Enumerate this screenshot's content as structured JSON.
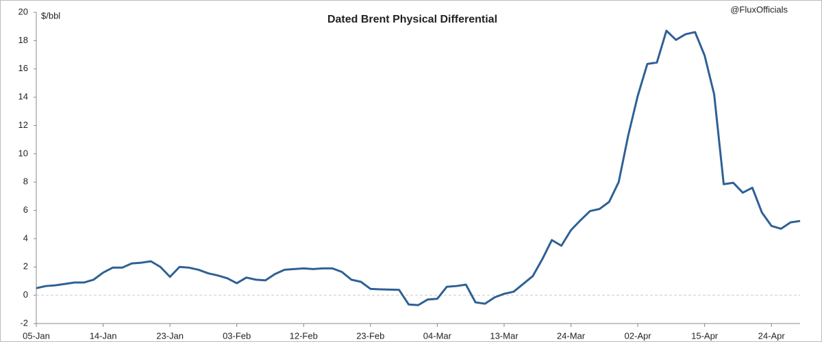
{
  "chart_data": {
    "type": "line",
    "title": "Dated Brent Physical Differential",
    "y_label": "$/bbl",
    "annotation": "@FluxOfficials",
    "categories": [
      "05-Jan",
      null,
      null,
      null,
      null,
      null,
      null,
      "14-Jan",
      null,
      null,
      null,
      null,
      null,
      null,
      "23-Jan",
      null,
      null,
      null,
      null,
      null,
      null,
      "03-Feb",
      null,
      null,
      null,
      null,
      null,
      null,
      "12-Feb",
      null,
      null,
      null,
      null,
      null,
      null,
      "23-Feb",
      null,
      null,
      null,
      null,
      null,
      null,
      "04-Mar",
      null,
      null,
      null,
      null,
      null,
      null,
      "13-Mar",
      null,
      null,
      null,
      null,
      null,
      null,
      "24-Mar",
      null,
      null,
      null,
      null,
      null,
      null,
      "02-Apr",
      null,
      null,
      null,
      null,
      null,
      null,
      "15-Apr",
      null,
      null,
      null,
      null,
      null,
      null,
      "24-Apr",
      null,
      null,
      null
    ],
    "values": [
      0.5,
      0.65,
      0.7,
      0.8,
      0.9,
      0.9,
      1.1,
      1.6,
      1.95,
      1.95,
      2.25,
      2.3,
      2.4,
      2.0,
      1.3,
      2.0,
      1.95,
      1.8,
      1.55,
      1.4,
      1.2,
      0.85,
      1.25,
      1.1,
      1.05,
      1.5,
      1.8,
      1.85,
      1.9,
      1.85,
      1.9,
      1.9,
      1.65,
      1.1,
      0.95,
      0.45,
      0.42,
      0.4,
      0.38,
      -0.65,
      -0.7,
      -0.3,
      -0.25,
      0.6,
      0.65,
      0.75,
      -0.5,
      -0.6,
      -0.15,
      0.1,
      0.25,
      0.8,
      1.35,
      2.55,
      3.9,
      3.5,
      4.6,
      5.3,
      5.95,
      6.1,
      6.6,
      8.0,
      11.3,
      14.1,
      16.35,
      16.45,
      18.7,
      18.05,
      18.45,
      18.6,
      16.95,
      14.2,
      7.85,
      7.95,
      7.25,
      7.6,
      5.85,
      4.9,
      4.7,
      5.15,
      5.25
    ],
    "color": "#2e6095",
    "ylim": [
      -2,
      20
    ],
    "yticks": [
      -2,
      0,
      2,
      4,
      6,
      8,
      10,
      12,
      14,
      16,
      18,
      20
    ],
    "zero_line": true,
    "grid": false
  }
}
